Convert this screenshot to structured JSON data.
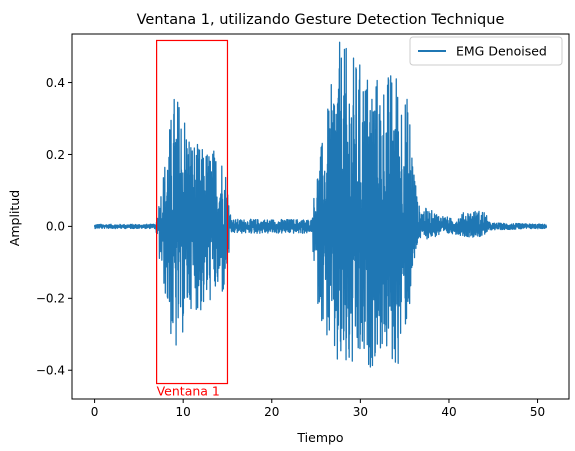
{
  "chart_data": {
    "type": "line",
    "title": "Ventana 1, utilizando Gesture Detection Technique",
    "xlabel": "Tiempo",
    "ylabel": "Amplitud",
    "xlim": [
      -2.55,
      53.55
    ],
    "ylim": [
      -0.48,
      0.535
    ],
    "x_ticks": [
      0,
      10,
      20,
      30,
      40,
      50
    ],
    "x_tick_labels": [
      "0",
      "10",
      "20",
      "30",
      "40",
      "50"
    ],
    "y_ticks": [
      -0.4,
      -0.2,
      0.0,
      0.2,
      0.4
    ],
    "y_tick_labels": [
      "−0.4",
      "−0.2",
      "0.0",
      "0.2",
      "0.4"
    ],
    "grid": false,
    "legend_position": "top-right",
    "series": [
      {
        "name": "EMG Denoised",
        "color": "#1f77b4",
        "x_range": [
          0,
          51
        ],
        "envelope": [
          {
            "x": 0.0,
            "upper": 0.006,
            "lower": -0.006
          },
          {
            "x": 6.9,
            "upper": 0.006,
            "lower": -0.006
          },
          {
            "x": 7.3,
            "upper": 0.08,
            "lower": -0.1
          },
          {
            "x": 8.0,
            "upper": 0.2,
            "lower": -0.2
          },
          {
            "x": 9.0,
            "upper": 0.38,
            "lower": -0.39
          },
          {
            "x": 10.0,
            "upper": 0.35,
            "lower": -0.3
          },
          {
            "x": 11.0,
            "upper": 0.25,
            "lower": -0.22
          },
          {
            "x": 12.0,
            "upper": 0.22,
            "lower": -0.25
          },
          {
            "x": 13.5,
            "upper": 0.22,
            "lower": -0.2
          },
          {
            "x": 14.6,
            "upper": 0.2,
            "lower": -0.2
          },
          {
            "x": 15.5,
            "upper": 0.02,
            "lower": -0.02
          },
          {
            "x": 24.5,
            "upper": 0.02,
            "lower": -0.02
          },
          {
            "x": 25.0,
            "upper": 0.15,
            "lower": -0.2
          },
          {
            "x": 26.0,
            "upper": 0.28,
            "lower": -0.3
          },
          {
            "x": 27.5,
            "upper": 0.52,
            "lower": -0.44
          },
          {
            "x": 30.5,
            "upper": 0.45,
            "lower": -0.42
          },
          {
            "x": 32.5,
            "upper": 0.42,
            "lower": -0.35
          },
          {
            "x": 34.0,
            "upper": 0.45,
            "lower": -0.42
          },
          {
            "x": 35.5,
            "upper": 0.35,
            "lower": -0.25
          },
          {
            "x": 36.5,
            "upper": 0.06,
            "lower": -0.04
          },
          {
            "x": 40.5,
            "upper": 0.02,
            "lower": -0.02
          },
          {
            "x": 42.0,
            "upper": 0.045,
            "lower": -0.03
          },
          {
            "x": 44.0,
            "upper": 0.045,
            "lower": -0.03
          },
          {
            "x": 44.6,
            "upper": 0.01,
            "lower": -0.01
          },
          {
            "x": 51.0,
            "upper": 0.006,
            "lower": -0.006
          }
        ]
      }
    ],
    "annotations": [
      {
        "type": "rectangle",
        "label": "Ventana 1",
        "color": "#ff0000",
        "x_range": [
          7.0,
          15.0
        ],
        "y_range": [
          -0.437,
          0.517
        ]
      }
    ]
  }
}
